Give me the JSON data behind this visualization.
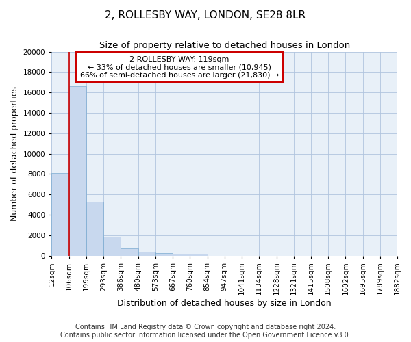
{
  "title": "2, ROLLESBY WAY, LONDON, SE28 8LR",
  "subtitle": "Size of property relative to detached houses in London",
  "xlabel": "Distribution of detached houses by size in London",
  "ylabel": "Number of detached properties",
  "footer_line1": "Contains HM Land Registry data © Crown copyright and database right 2024.",
  "footer_line2": "Contains public sector information licensed under the Open Government Licence v3.0.",
  "annotation_title": "2 ROLLESBY WAY: 119sqm",
  "annotation_line1": "← 33% of detached houses are smaller (10,945)",
  "annotation_line2": "66% of semi-detached houses are larger (21,830) →",
  "bin_edges": [
    12,
    106,
    199,
    293,
    386,
    480,
    573,
    667,
    760,
    854,
    947,
    1041,
    1134,
    1228,
    1321,
    1415,
    1508,
    1602,
    1695,
    1789,
    1882
  ],
  "bin_labels": [
    "12sqm",
    "106sqm",
    "199sqm",
    "293sqm",
    "386sqm",
    "480sqm",
    "573sqm",
    "667sqm",
    "760sqm",
    "854sqm",
    "947sqm",
    "1041sqm",
    "1134sqm",
    "1228sqm",
    "1321sqm",
    "1415sqm",
    "1508sqm",
    "1602sqm",
    "1695sqm",
    "1789sqm",
    "1882sqm"
  ],
  "bar_heights": [
    8100,
    16600,
    5300,
    1850,
    700,
    350,
    270,
    210,
    185,
    0,
    0,
    0,
    0,
    0,
    0,
    0,
    0,
    0,
    0,
    0
  ],
  "bar_color": "#c8d8ee",
  "bar_edge_color": "#7aaad0",
  "grid_color": "#b0c4de",
  "background_color": "#e8f0f8",
  "vline_color": "#cc0000",
  "vline_x": 106,
  "ylim": [
    0,
    20000
  ],
  "yticks": [
    0,
    2000,
    4000,
    6000,
    8000,
    10000,
    12000,
    14000,
    16000,
    18000,
    20000
  ],
  "annotation_box_color": "#cc0000",
  "title_fontsize": 11,
  "subtitle_fontsize": 9.5,
  "axis_label_fontsize": 9,
  "tick_fontsize": 7.5,
  "footer_fontsize": 7
}
